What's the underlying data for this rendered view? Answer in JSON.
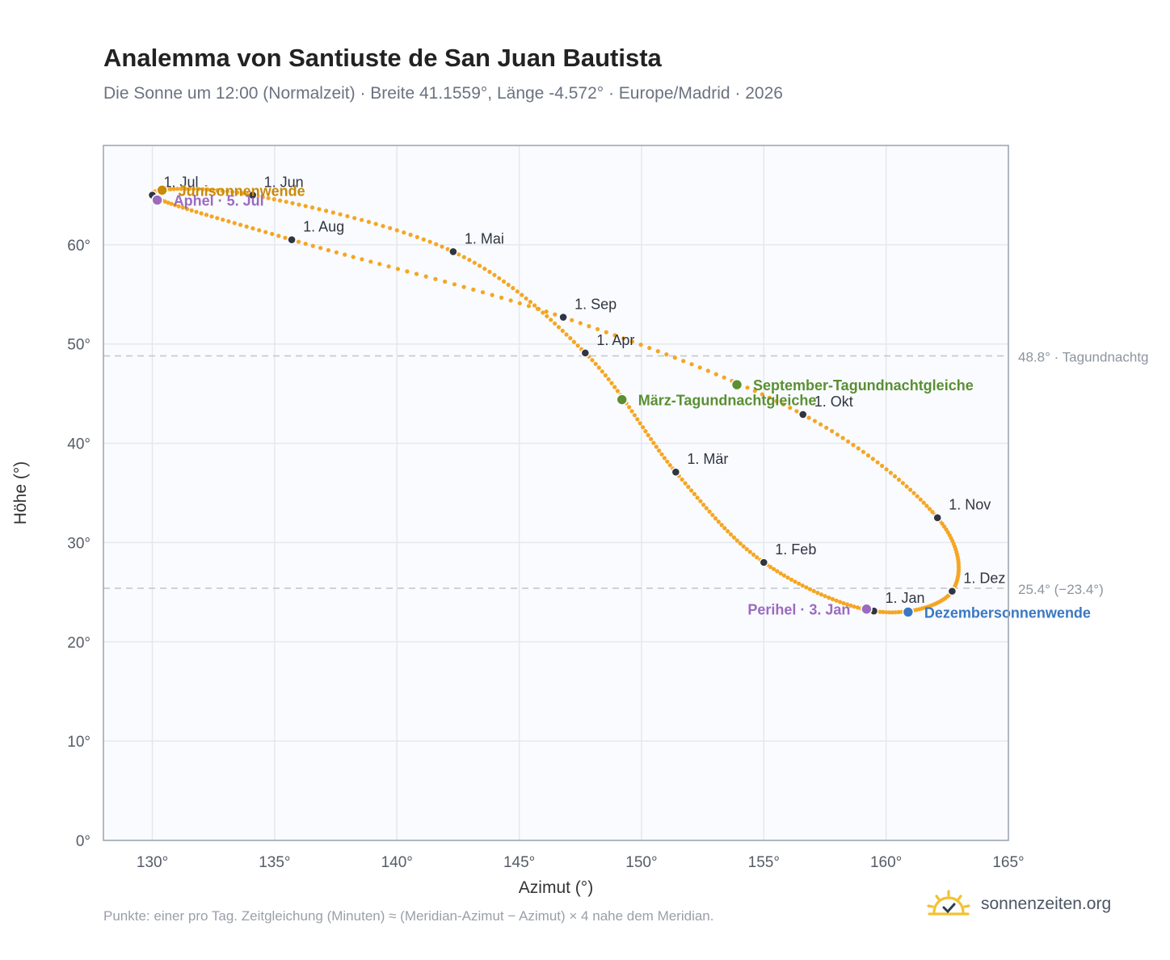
{
  "title": "Analemma von Santiuste de San Juan Bautista",
  "subtitle": "Die Sonne um 12:00 (Normalzeit) · Breite 41.1559°, Länge -4.572° · Europe/Madrid · 2026",
  "footer": "Punkte: einer pro Tag. Zeitgleichung (Minuten) ≈ (Meridian-Azimut − Azimut) × 4 nahe dem Meridian.",
  "brand": {
    "name": "sonnenzeiten.org",
    "icon": "sun-check-logo-icon"
  },
  "colors": {
    "curve": "#f5a623",
    "month_point": "#2f3542",
    "solstice_june": "#c98a0a",
    "equinox": "#5a8f32",
    "solstice_december": "#3a78c2",
    "apsis": "#9b6bbf",
    "plot_background": "#f9fbfe",
    "grid": "#e4e8ee",
    "reference_line": "#c3c9d1"
  },
  "chart_data": {
    "type": "scatter",
    "xlabel": "Azimut (°)",
    "ylabel": "Höhe (°)",
    "xlim": [
      128,
      165
    ],
    "ylim": [
      0,
      70
    ],
    "xticks": [
      130,
      135,
      140,
      145,
      150,
      155,
      160,
      165
    ],
    "yticks": [
      0,
      10,
      20,
      30,
      40,
      50,
      60
    ],
    "tick_suffix": "°",
    "grid": true,
    "reference_lines": [
      {
        "y": 48.8,
        "label": "48.8° · Tagundnachtg"
      },
      {
        "y": 25.4,
        "label": "25.4° (−23.4°)"
      }
    ],
    "month_markers": [
      {
        "label": "1. Jan",
        "x": 159.5,
        "y": 23.1
      },
      {
        "label": "1. Feb",
        "x": 155.0,
        "y": 28.0
      },
      {
        "label": "1. Mär",
        "x": 151.4,
        "y": 37.1
      },
      {
        "label": "1. Apr",
        "x": 147.7,
        "y": 49.1
      },
      {
        "label": "1. Mai",
        "x": 142.3,
        "y": 59.3
      },
      {
        "label": "1. Jun",
        "x": 134.1,
        "y": 65.0
      },
      {
        "label": "1. Jul",
        "x": 130.0,
        "y": 65.0
      },
      {
        "label": "1. Aug",
        "x": 135.7,
        "y": 60.5
      },
      {
        "label": "1. Sep",
        "x": 146.8,
        "y": 52.7
      },
      {
        "label": "1. Okt",
        "x": 156.6,
        "y": 42.9
      },
      {
        "label": "1. Nov",
        "x": 162.1,
        "y": 32.5
      },
      {
        "label": "1. Dez",
        "x": 162.7,
        "y": 25.1
      }
    ],
    "events": [
      {
        "label": "Junisonnenwende",
        "x": 130.4,
        "y": 65.5,
        "kind": "solstice_june"
      },
      {
        "label": "Aphel · 5. Jul",
        "x": 130.2,
        "y": 64.5,
        "kind": "apsis"
      },
      {
        "label": "März-Tagundnachtgleiche",
        "x": 149.2,
        "y": 44.4,
        "kind": "equinox"
      },
      {
        "label": "September-Tagundnachtgleiche",
        "x": 153.9,
        "y": 45.9,
        "kind": "equinox"
      },
      {
        "label": "Perihel · 3. Jan",
        "x": 159.2,
        "y": 23.3,
        "kind": "apsis"
      },
      {
        "label": "Dezembersonnenwende",
        "x": 160.9,
        "y": 23.0,
        "kind": "solstice_december"
      }
    ]
  }
}
